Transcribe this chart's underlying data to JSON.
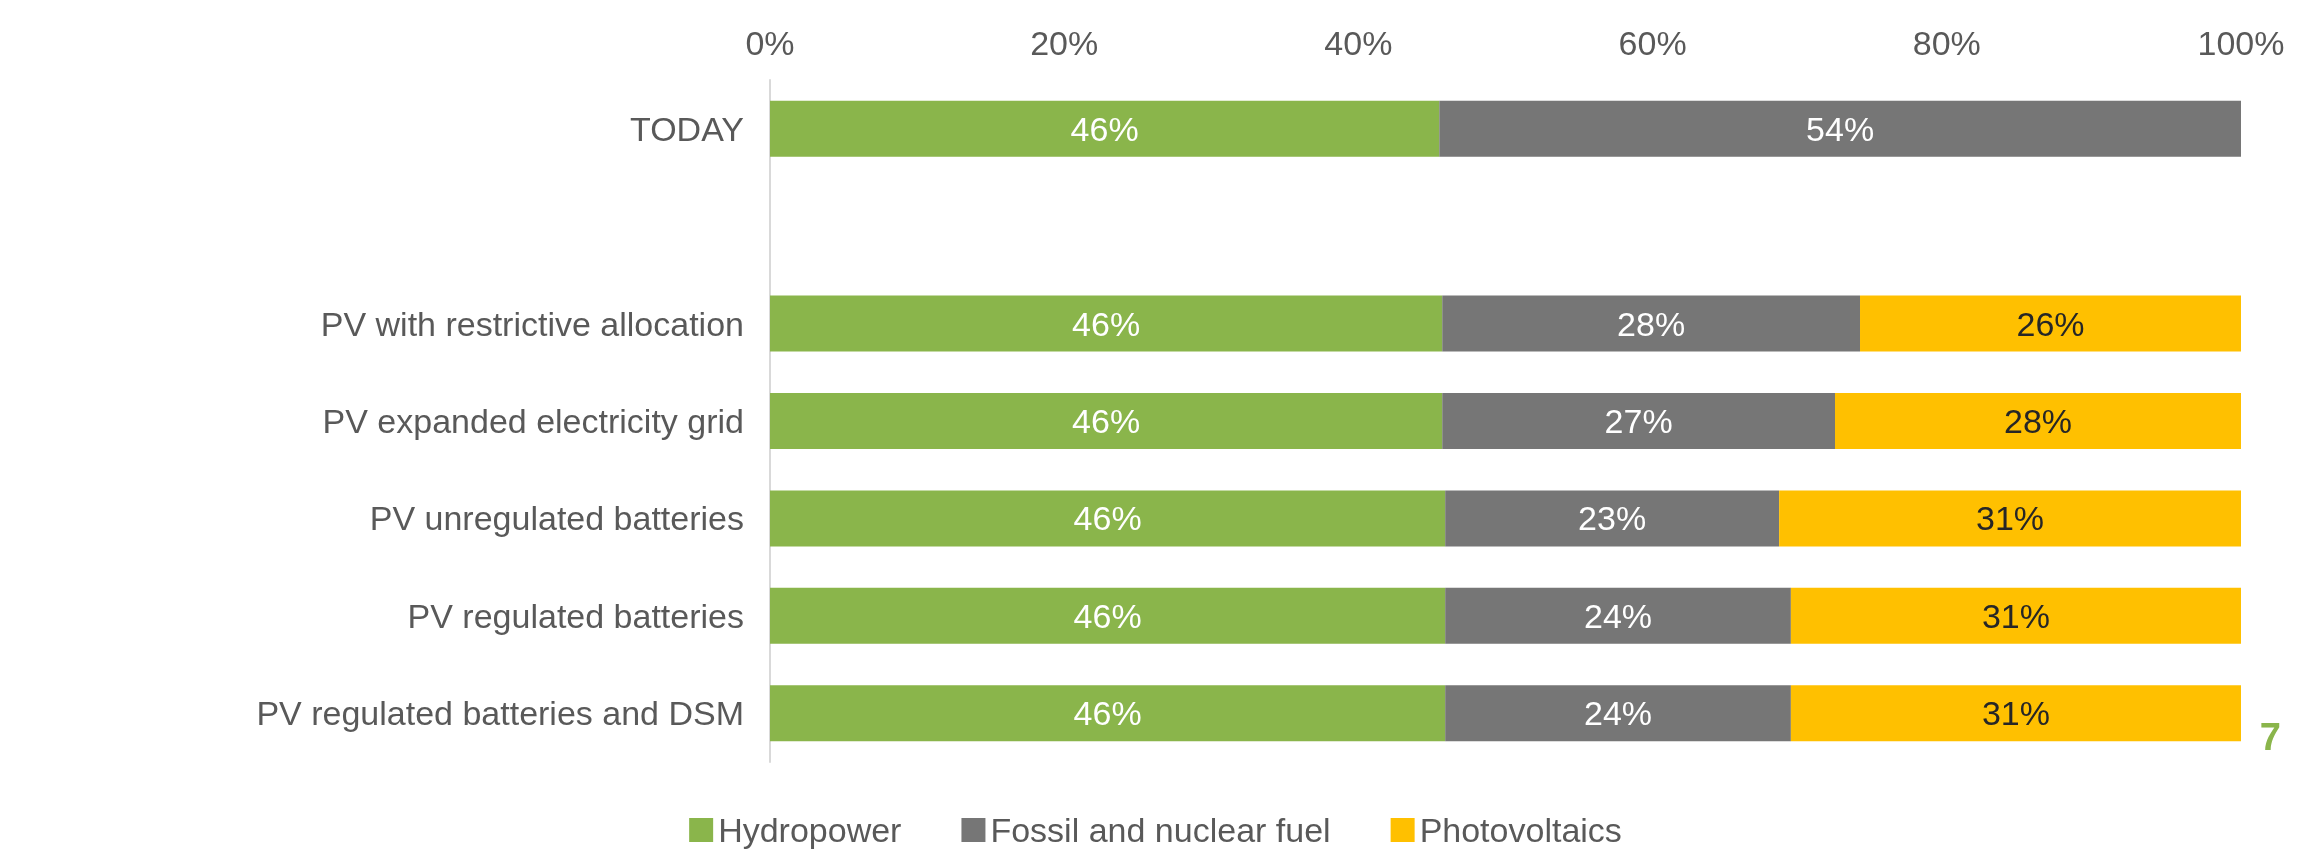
{
  "chart_data": {
    "type": "bar",
    "orientation": "horizontal",
    "stacked": true,
    "categories": [
      "TODAY",
      null,
      "PV with restrictive allocation",
      "PV expanded electricity grid",
      "PV unregulated batteries",
      "PV regulated batteries",
      "PV regulated batteries and DSM"
    ],
    "series": [
      {
        "name": "Hydropower",
        "color": "#8ab54b",
        "values": [
          45.5,
          null,
          45.7,
          45.7,
          45.9,
          45.9,
          45.9
        ],
        "value_labels": [
          "46%",
          null,
          "46%",
          "46%",
          "46%",
          "46%",
          "46%"
        ]
      },
      {
        "name": "Fossil and nuclear fuel",
        "color": "#767676",
        "values": [
          54.5,
          null,
          28.4,
          26.7,
          22.7,
          23.5,
          23.5
        ],
        "value_labels": [
          "54%",
          null,
          "28%",
          "27%",
          "23%",
          "24%",
          "24%"
        ]
      },
      {
        "name": "Photovoltaics",
        "color": "#ffc000",
        "values": [
          null,
          null,
          25.9,
          27.6,
          31.4,
          30.6,
          30.6
        ],
        "value_labels": [
          null,
          null,
          "26%",
          "28%",
          "31%",
          "31%",
          "31%"
        ]
      }
    ],
    "xlim": [
      0,
      100
    ],
    "xticks": [
      {
        "value": 0,
        "label": "0%"
      },
      {
        "value": 20,
        "label": "20%"
      },
      {
        "value": 40,
        "label": "40%"
      },
      {
        "value": 60,
        "label": "60%"
      },
      {
        "value": 80,
        "label": "80%"
      },
      {
        "value": 100,
        "label": "100%"
      }
    ],
    "grid": false,
    "legend": "bottom",
    "annotations": [
      "7"
    ]
  }
}
